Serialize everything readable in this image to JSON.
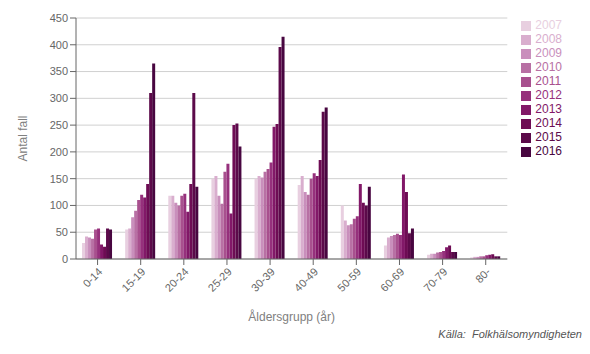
{
  "chart_data": {
    "type": "bar",
    "xlabel": "Åldersgrupp (år)",
    "ylabel": "Antal fall",
    "categories": [
      "0-14",
      "15-19",
      "20-24",
      "25-29",
      "30-39",
      "40-49",
      "50-59",
      "60-69",
      "70-79",
      "80-"
    ],
    "series": [
      {
        "name": "2007",
        "color": "#e8cfe0",
        "values": [
          30,
          55,
          118,
          150,
          150,
          138,
          100,
          25,
          8,
          3
        ]
      },
      {
        "name": "2008",
        "color": "#d9aece",
        "values": [
          42,
          57,
          118,
          155,
          155,
          155,
          72,
          40,
          10,
          4
        ]
      },
      {
        "name": "2009",
        "color": "#c98fbc",
        "values": [
          40,
          78,
          105,
          118,
          152,
          125,
          63,
          43,
          10,
          4
        ]
      },
      {
        "name": "2010",
        "color": "#b870a4",
        "values": [
          38,
          90,
          100,
          103,
          163,
          120,
          65,
          45,
          12,
          5
        ]
      },
      {
        "name": "2011",
        "color": "#a8508e",
        "values": [
          55,
          110,
          118,
          163,
          168,
          150,
          75,
          47,
          13,
          5
        ]
      },
      {
        "name": "2012",
        "color": "#96307c",
        "values": [
          57,
          120,
          122,
          178,
          180,
          160,
          80,
          45,
          15,
          7
        ]
      },
      {
        "name": "2013",
        "color": "#821868",
        "values": [
          27,
          115,
          88,
          85,
          247,
          155,
          140,
          158,
          22,
          8
        ]
      },
      {
        "name": "2014",
        "color": "#6e0c54",
        "values": [
          23,
          140,
          140,
          250,
          252,
          185,
          105,
          125,
          25,
          9
        ]
      },
      {
        "name": "2015",
        "color": "#5c0a4a",
        "values": [
          57,
          310,
          310,
          253,
          396,
          275,
          100,
          48,
          13,
          5
        ]
      },
      {
        "name": "2016",
        "color": "#480640",
        "values": [
          55,
          365,
          135,
          210,
          415,
          283,
          135,
          57,
          13,
          5
        ]
      }
    ],
    "ylim": [
      0,
      450
    ],
    "yticks": [
      0,
      50,
      100,
      150,
      200,
      250,
      300,
      350,
      400,
      450
    ],
    "grid": true,
    "legend": "right",
    "annotations": [
      "Källa:  Folkhälsomyndigheten"
    ]
  }
}
